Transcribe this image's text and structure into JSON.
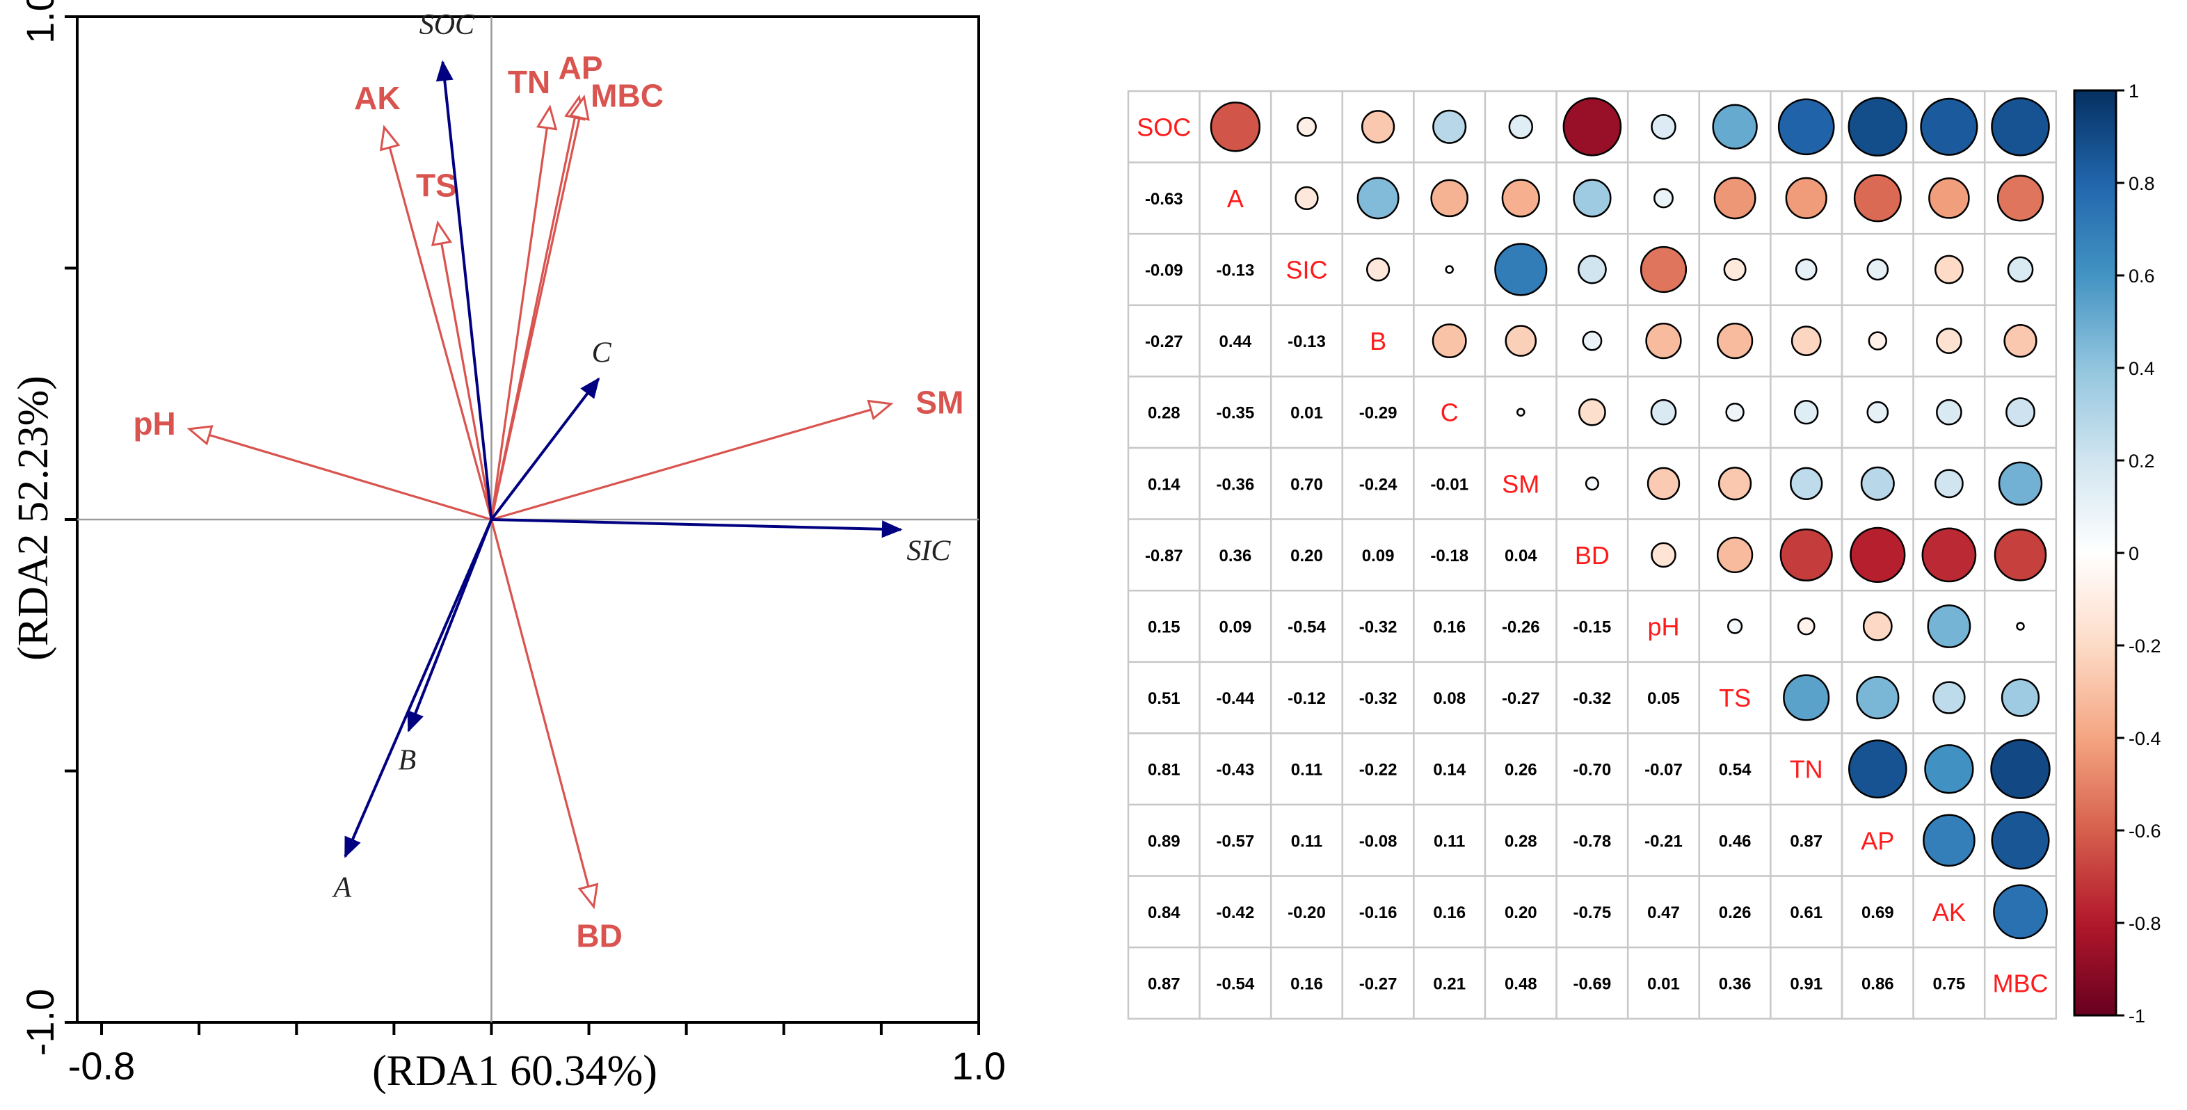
{
  "chart_data": [
    {
      "type": "scatter",
      "subtype": "rda-biplot",
      "xlabel": "(RDA1 60.34%)",
      "ylabel": "(RDA2 52.23%)",
      "xlim": [
        -0.85,
        1.0
      ],
      "ylim": [
        -1.0,
        1.0
      ],
      "x_tick_labels": [
        {
          "value": -0.8,
          "label": "-0.8"
        },
        {
          "value": 1.0,
          "label": "1.0"
        }
      ],
      "y_tick_labels": [
        {
          "value": 1.0,
          "label": "1.0"
        },
        {
          "value": -1.0,
          "label": "-1.0"
        }
      ],
      "environmental_vectors": [
        {
          "name": "pH",
          "x": -0.62,
          "y": 0.18
        },
        {
          "name": "AK",
          "x": -0.22,
          "y": 0.78
        },
        {
          "name": "TS",
          "x": -0.11,
          "y": 0.59
        },
        {
          "name": "TN",
          "x": 0.12,
          "y": 0.82
        },
        {
          "name": "AP",
          "x": 0.18,
          "y": 0.84
        },
        {
          "name": "MBC",
          "x": 0.19,
          "y": 0.84
        },
        {
          "name": "SM",
          "x": 0.82,
          "y": 0.23
        },
        {
          "name": "BD",
          "x": 0.21,
          "y": -0.77
        }
      ],
      "response_vectors": [
        {
          "name": "SOC",
          "x": -0.1,
          "y": 0.91
        },
        {
          "name": "C",
          "x": 0.22,
          "y": 0.28
        },
        {
          "name": "SIC",
          "x": 0.84,
          "y": -0.02
        },
        {
          "name": "B",
          "x": -0.17,
          "y": -0.42
        },
        {
          "name": "A",
          "x": -0.3,
          "y": -0.67
        }
      ],
      "colors": {
        "environmental": "#d9534f",
        "response": "#000080"
      }
    },
    {
      "type": "heatmap",
      "subtype": "correlation-matrix",
      "variables": [
        "SOC",
        "A",
        "SIC",
        "B",
        "C",
        "SM",
        "BD",
        "pH",
        "TS",
        "TN",
        "AP",
        "AK",
        "MBC"
      ],
      "matrix": [
        [
          1.0,
          -0.63,
          -0.09,
          -0.27,
          0.28,
          0.14,
          -0.87,
          0.15,
          0.51,
          0.81,
          0.89,
          0.84,
          0.87
        ],
        [
          -0.63,
          1.0,
          -0.13,
          0.44,
          -0.35,
          -0.36,
          0.36,
          0.09,
          -0.44,
          -0.43,
          -0.57,
          -0.42,
          -0.54
        ],
        [
          -0.09,
          -0.13,
          1.0,
          -0.13,
          0.01,
          0.7,
          0.2,
          -0.54,
          -0.12,
          0.11,
          0.11,
          -0.2,
          0.16
        ],
        [
          -0.27,
          0.44,
          -0.13,
          1.0,
          -0.29,
          -0.24,
          0.09,
          -0.32,
          -0.32,
          -0.22,
          -0.08,
          -0.16,
          -0.27
        ],
        [
          0.28,
          -0.35,
          0.01,
          -0.29,
          1.0,
          -0.01,
          -0.18,
          0.16,
          0.08,
          0.14,
          0.11,
          0.16,
          0.21
        ],
        [
          0.14,
          -0.36,
          0.7,
          -0.24,
          -0.01,
          1.0,
          0.04,
          -0.26,
          -0.27,
          0.26,
          0.28,
          0.2,
          0.48
        ],
        [
          -0.87,
          0.36,
          0.2,
          0.09,
          -0.18,
          0.04,
          1.0,
          -0.15,
          -0.32,
          -0.7,
          -0.78,
          -0.75,
          -0.69
        ],
        [
          0.15,
          0.09,
          -0.54,
          -0.32,
          0.16,
          -0.26,
          -0.15,
          1.0,
          0.05,
          -0.07,
          -0.21,
          0.47,
          0.01
        ],
        [
          0.51,
          -0.44,
          -0.12,
          -0.32,
          0.08,
          -0.27,
          -0.32,
          0.05,
          1.0,
          0.54,
          0.46,
          0.26,
          0.36
        ],
        [
          0.81,
          -0.43,
          0.11,
          -0.22,
          0.14,
          0.26,
          -0.7,
          -0.07,
          0.54,
          1.0,
          0.87,
          0.61,
          0.91
        ],
        [
          0.89,
          -0.57,
          0.11,
          -0.08,
          0.11,
          0.28,
          -0.78,
          -0.21,
          0.46,
          0.87,
          1.0,
          0.69,
          0.86
        ],
        [
          0.84,
          -0.42,
          -0.2,
          -0.16,
          0.16,
          0.2,
          -0.75,
          0.47,
          0.26,
          0.61,
          0.69,
          1.0,
          0.75
        ],
        [
          0.87,
          -0.54,
          0.16,
          -0.27,
          0.21,
          0.48,
          -0.69,
          0.01,
          0.36,
          0.91,
          0.86,
          0.75,
          1.0
        ]
      ],
      "lower_triangle_labels": [
        [
          "-0.63"
        ],
        [
          "-0.09",
          "-0.13"
        ],
        [
          "-0.27",
          "0.44",
          "-0.13"
        ],
        [
          "0.28",
          "-0.35",
          "0.01",
          "-0.29"
        ],
        [
          "0.14",
          "-0.36",
          "0.70",
          "-0.24",
          "-0.01"
        ],
        [
          "-0.87",
          "0.36",
          "0.20",
          "0.09",
          "-0.18",
          "0.04"
        ],
        [
          "0.15",
          "0.09",
          "-0.54",
          "-0.32",
          "0.16",
          "-0.26",
          "-0.15"
        ],
        [
          "0.51",
          "-0.44",
          "-0.12",
          "-0.32",
          "0.08",
          "-0.27",
          "-0.32",
          "0.05"
        ],
        [
          "0.81",
          "-0.43",
          "0.11",
          "-0.22",
          "0.14",
          "0.26",
          "-0.70",
          "-0.07",
          "0.54"
        ],
        [
          "0.89",
          "-0.57",
          "0.11",
          "-0.08",
          "0.11",
          "0.28",
          "-0.78",
          "-0.21",
          "0.46",
          "0.87"
        ],
        [
          "0.84",
          "-0.42",
          "-0.20",
          "-0.16",
          "0.16",
          "0.20",
          "-0.75",
          "0.47",
          "0.26",
          "0.61",
          "0.69"
        ],
        [
          "0.87",
          "-0.54",
          "0.16",
          "-0.27",
          "0.21",
          "0.48",
          "-0.69",
          "0.01",
          "0.36",
          "0.91",
          "0.86",
          "0.75"
        ]
      ],
      "colorbar": {
        "range": [
          -1,
          1
        ],
        "ticks": [
          {
            "value": 1,
            "label": "1"
          },
          {
            "value": 0.8,
            "label": "0.8"
          },
          {
            "value": 0.6,
            "label": "0.6"
          },
          {
            "value": 0.4,
            "label": "0.4"
          },
          {
            "value": 0.2,
            "label": "0.2"
          },
          {
            "value": 0,
            "label": "0"
          },
          {
            "value": -0.2,
            "label": "-0.2"
          },
          {
            "value": -0.4,
            "label": "-0.4"
          },
          {
            "value": -0.6,
            "label": "-0.6"
          },
          {
            "value": -0.8,
            "label": "-0.8"
          },
          {
            "value": -1,
            "label": "-1"
          }
        ],
        "colors": [
          "#67001f",
          "#b2182b",
          "#d6604d",
          "#f4a582",
          "#fddbc7",
          "#ffffff",
          "#d1e5f0",
          "#92c5de",
          "#4393c3",
          "#2166ac",
          "#053061"
        ]
      }
    }
  ]
}
